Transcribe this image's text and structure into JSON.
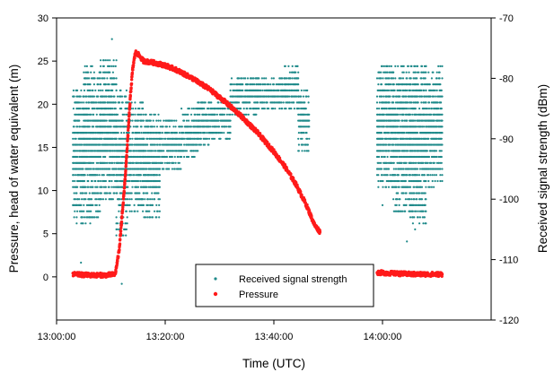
{
  "chart_data": {
    "type": "scatter",
    "title": "",
    "xlabel": "Time (UTC)",
    "ylabel_left": "Pressure, head of water equivalent (m)",
    "ylabel_right": "Received signal strength (dBm)",
    "x_unit": "minutes after 13:00 UTC",
    "xlim": [
      0,
      80
    ],
    "ylim_left": [
      -5,
      30
    ],
    "ylim_right": [
      -120,
      -70
    ],
    "x_ticks": [
      "13:00:00",
      "13:20:00",
      "13:40:00",
      "14:00:00"
    ],
    "y_ticks_left": [
      "0",
      "5",
      "10",
      "15",
      "20",
      "25",
      "30"
    ],
    "y_ticks_right": [
      "-120",
      "-110",
      "-100",
      "-90",
      "-80",
      "-70"
    ],
    "grid": false,
    "legend_position": "bottom-center",
    "colors": {
      "signal": "#1f8a8a",
      "pressure": "#ff1a1a"
    },
    "series": [
      {
        "name": "Received signal strength",
        "axis": "right",
        "marker": "small-dot",
        "segments": [
          {
            "x_range": [
              3,
              5
            ],
            "y_band": [
              -104,
              -82
            ]
          },
          {
            "x_range": [
              5,
              8
            ],
            "y_band": [
              -104,
              -78
            ]
          },
          {
            "x_range": [
              8,
              11
            ],
            "y_band": [
              -100,
              -77
            ]
          },
          {
            "x_range": [
              11,
              13
            ],
            "y_band": [
              -106,
              -82
            ]
          },
          {
            "x_range": [
              13,
              16
            ],
            "y_band": [
              -102,
              -84
            ]
          },
          {
            "x_range": [
              16,
              19
            ],
            "y_band": [
              -103,
              -86
            ]
          },
          {
            "x_range": [
              19,
              23
            ],
            "y_band": [
              -95,
              -87
            ]
          },
          {
            "x_range": [
              23,
              26
            ],
            "y_band": [
              -93,
              -85
            ]
          },
          {
            "x_range": [
              26,
              28
            ],
            "y_band": [
              -91,
              -84
            ]
          },
          {
            "x_range": [
              28,
              32
            ],
            "y_band": [
              -90,
              -84
            ]
          },
          {
            "x_range": [
              32,
              37
            ],
            "y_band": [
              -86,
              -80
            ]
          },
          {
            "x_range": [
              37,
              42
            ],
            "y_band": [
              -85,
              -80
            ]
          },
          {
            "x_range": [
              42,
              44.5
            ],
            "y_band": [
              -85,
              -78
            ]
          },
          {
            "x_range": [
              44.5,
              46.5
            ],
            "y_band": [
              -92,
              -82
            ]
          },
          {
            "x_range": [
              59,
              62
            ],
            "y_band": [
              -98,
              -78
            ]
          },
          {
            "x_range": [
              62,
              65
            ],
            "y_band": [
              -102,
              -78
            ]
          },
          {
            "x_range": [
              65,
              68
            ],
            "y_band": [
              -104,
              -78
            ]
          },
          {
            "x_range": [
              68,
              71
            ],
            "y_band": [
              -98,
              -78
            ]
          }
        ],
        "outliers": [
          {
            "x": 10.2,
            "y": -73.5
          },
          {
            "x": 4.5,
            "y": -110.5
          },
          {
            "x": 12,
            "y": -114
          },
          {
            "x": 64.5,
            "y": -107
          },
          {
            "x": 66,
            "y": -105
          },
          {
            "x": 60,
            "y": -101
          },
          {
            "x": 46,
            "y": -90
          }
        ]
      },
      {
        "name": "Pressure",
        "axis": "left",
        "marker": "dot",
        "points": [
          {
            "x": 3.0,
            "y": 0.3
          },
          {
            "x": 6.0,
            "y": 0.2
          },
          {
            "x": 9.0,
            "y": 0.2
          },
          {
            "x": 10.8,
            "y": 0.3
          },
          {
            "x": 11.5,
            "y": 3.0
          },
          {
            "x": 12.2,
            "y": 8.0
          },
          {
            "x": 12.8,
            "y": 13.0
          },
          {
            "x": 13.2,
            "y": 17.0
          },
          {
            "x": 13.6,
            "y": 21.0
          },
          {
            "x": 14.0,
            "y": 24.0
          },
          {
            "x": 14.5,
            "y": 26.0
          },
          {
            "x": 15.0,
            "y": 25.8
          },
          {
            "x": 16.0,
            "y": 25.0
          },
          {
            "x": 18.0,
            "y": 24.8
          },
          {
            "x": 20.0,
            "y": 24.5
          },
          {
            "x": 22.0,
            "y": 24.0
          },
          {
            "x": 25.0,
            "y": 23.0
          },
          {
            "x": 28.0,
            "y": 21.8
          },
          {
            "x": 31.0,
            "y": 20.3
          },
          {
            "x": 34.0,
            "y": 18.6
          },
          {
            "x": 37.0,
            "y": 16.7
          },
          {
            "x": 40.0,
            "y": 14.5
          },
          {
            "x": 42.0,
            "y": 12.8
          },
          {
            "x": 44.0,
            "y": 10.8
          },
          {
            "x": 46.0,
            "y": 8.3
          },
          {
            "x": 47.5,
            "y": 6.0
          },
          {
            "x": 48.5,
            "y": 5.2
          },
          {
            "x": 59.0,
            "y": 0.5
          },
          {
            "x": 62.0,
            "y": 0.4
          },
          {
            "x": 66.0,
            "y": 0.3
          },
          {
            "x": 70.0,
            "y": 0.3
          },
          {
            "x": 71.0,
            "y": 0.3
          }
        ]
      }
    ]
  }
}
